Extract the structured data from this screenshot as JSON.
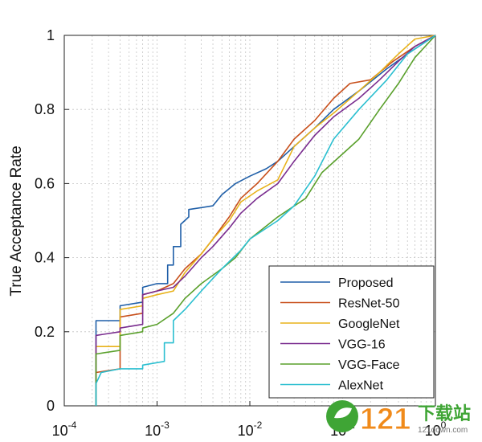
{
  "chart_data": {
    "type": "line",
    "title": "",
    "xlabel": "",
    "ylabel": "True Acceptance Rate",
    "xscale": "log",
    "xlim": [
      0.0001,
      1
    ],
    "ylim": [
      0,
      1
    ],
    "grid": true,
    "legend_position": "bottom-right",
    "x_ticks": [
      {
        "value": 0.0001,
        "label": "10-4",
        "base": "10",
        "exp": "-4"
      },
      {
        "value": 0.001,
        "label": "10-3",
        "base": "10",
        "exp": "-3"
      },
      {
        "value": 0.01,
        "label": "10-2",
        "base": "10",
        "exp": "-2"
      },
      {
        "value": 0.1,
        "label": "10-1",
        "base": "10",
        "exp": "-1"
      },
      {
        "value": 1,
        "label": "100",
        "base": "10",
        "exp": "0"
      }
    ],
    "y_ticks": [
      {
        "value": 0,
        "label": "0"
      },
      {
        "value": 0.2,
        "label": "0.2"
      },
      {
        "value": 0.4,
        "label": "0.4"
      },
      {
        "value": 0.6,
        "label": "0.6"
      },
      {
        "value": 0.8,
        "label": "0.8"
      },
      {
        "value": 1,
        "label": "1"
      }
    ],
    "series": [
      {
        "name": "Proposed",
        "color": "#1f5fa8",
        "points": [
          [
            0.00022,
            0.0
          ],
          [
            0.00022,
            0.23
          ],
          [
            0.0004,
            0.23
          ],
          [
            0.0004,
            0.27
          ],
          [
            0.0007,
            0.28
          ],
          [
            0.0007,
            0.32
          ],
          [
            0.001,
            0.33
          ],
          [
            0.0013,
            0.33
          ],
          [
            0.0013,
            0.38
          ],
          [
            0.0015,
            0.38
          ],
          [
            0.0015,
            0.43
          ],
          [
            0.0018,
            0.43
          ],
          [
            0.0018,
            0.49
          ],
          [
            0.0022,
            0.51
          ],
          [
            0.0022,
            0.53
          ],
          [
            0.004,
            0.54
          ],
          [
            0.005,
            0.57
          ],
          [
            0.007,
            0.6
          ],
          [
            0.01,
            0.62
          ],
          [
            0.015,
            0.64
          ],
          [
            0.02,
            0.66
          ],
          [
            0.03,
            0.7
          ],
          [
            0.05,
            0.75
          ],
          [
            0.08,
            0.8
          ],
          [
            0.15,
            0.85
          ],
          [
            0.3,
            0.91
          ],
          [
            0.5,
            0.95
          ],
          [
            1,
            1
          ]
        ]
      },
      {
        "name": "ResNet-50",
        "color": "#c8501c",
        "points": [
          [
            0.00022,
            0.0
          ],
          [
            0.00022,
            0.09
          ],
          [
            0.0004,
            0.1
          ],
          [
            0.0004,
            0.24
          ],
          [
            0.0007,
            0.25
          ],
          [
            0.0007,
            0.3
          ],
          [
            0.001,
            0.31
          ],
          [
            0.0015,
            0.33
          ],
          [
            0.002,
            0.37
          ],
          [
            0.003,
            0.41
          ],
          [
            0.004,
            0.45
          ],
          [
            0.006,
            0.51
          ],
          [
            0.008,
            0.56
          ],
          [
            0.012,
            0.6
          ],
          [
            0.02,
            0.66
          ],
          [
            0.03,
            0.72
          ],
          [
            0.05,
            0.77
          ],
          [
            0.08,
            0.83
          ],
          [
            0.12,
            0.87
          ],
          [
            0.2,
            0.88
          ],
          [
            0.35,
            0.93
          ],
          [
            0.6,
            0.97
          ],
          [
            1,
            1
          ]
        ]
      },
      {
        "name": "GoogleNet",
        "color": "#e8b21a",
        "points": [
          [
            0.00022,
            0.0
          ],
          [
            0.00022,
            0.16
          ],
          [
            0.0004,
            0.16
          ],
          [
            0.0004,
            0.26
          ],
          [
            0.0007,
            0.27
          ],
          [
            0.0007,
            0.29
          ],
          [
            0.001,
            0.3
          ],
          [
            0.0015,
            0.31
          ],
          [
            0.002,
            0.36
          ],
          [
            0.003,
            0.41
          ],
          [
            0.004,
            0.45
          ],
          [
            0.006,
            0.5
          ],
          [
            0.008,
            0.55
          ],
          [
            0.012,
            0.58
          ],
          [
            0.02,
            0.61
          ],
          [
            0.03,
            0.7
          ],
          [
            0.05,
            0.75
          ],
          [
            0.08,
            0.79
          ],
          [
            0.15,
            0.85
          ],
          [
            0.25,
            0.9
          ],
          [
            0.4,
            0.95
          ],
          [
            0.6,
            0.99
          ],
          [
            1,
            1
          ]
        ]
      },
      {
        "name": "VGG-16",
        "color": "#7a2d8f",
        "points": [
          [
            0.00022,
            0.0
          ],
          [
            0.00022,
            0.19
          ],
          [
            0.0004,
            0.2
          ],
          [
            0.0004,
            0.21
          ],
          [
            0.0007,
            0.22
          ],
          [
            0.0007,
            0.3
          ],
          [
            0.001,
            0.31
          ],
          [
            0.0015,
            0.32
          ],
          [
            0.002,
            0.35
          ],
          [
            0.003,
            0.4
          ],
          [
            0.004,
            0.43
          ],
          [
            0.006,
            0.48
          ],
          [
            0.008,
            0.52
          ],
          [
            0.012,
            0.56
          ],
          [
            0.02,
            0.6
          ],
          [
            0.03,
            0.66
          ],
          [
            0.05,
            0.73
          ],
          [
            0.08,
            0.78
          ],
          [
            0.15,
            0.83
          ],
          [
            0.25,
            0.88
          ],
          [
            0.4,
            0.93
          ],
          [
            0.6,
            0.97
          ],
          [
            1,
            1
          ]
        ]
      },
      {
        "name": "VGG-Face",
        "color": "#5aa02c",
        "points": [
          [
            0.00022,
            0.0
          ],
          [
            0.00022,
            0.14
          ],
          [
            0.0004,
            0.15
          ],
          [
            0.0004,
            0.19
          ],
          [
            0.0007,
            0.2
          ],
          [
            0.0007,
            0.21
          ],
          [
            0.001,
            0.22
          ],
          [
            0.0015,
            0.25
          ],
          [
            0.002,
            0.29
          ],
          [
            0.003,
            0.33
          ],
          [
            0.005,
            0.37
          ],
          [
            0.007,
            0.4
          ],
          [
            0.01,
            0.45
          ],
          [
            0.02,
            0.51
          ],
          [
            0.04,
            0.56
          ],
          [
            0.06,
            0.63
          ],
          [
            0.1,
            0.68
          ],
          [
            0.15,
            0.72
          ],
          [
            0.25,
            0.8
          ],
          [
            0.4,
            0.87
          ],
          [
            0.6,
            0.94
          ],
          [
            1,
            1
          ]
        ]
      },
      {
        "name": "AlexNet",
        "color": "#2bbfd0",
        "points": [
          [
            0.00022,
            0.0
          ],
          [
            0.00022,
            0.06
          ],
          [
            0.00025,
            0.09
          ],
          [
            0.0004,
            0.1
          ],
          [
            0.0007,
            0.1
          ],
          [
            0.0007,
            0.11
          ],
          [
            0.0012,
            0.12
          ],
          [
            0.0012,
            0.17
          ],
          [
            0.0015,
            0.17
          ],
          [
            0.0015,
            0.23
          ],
          [
            0.002,
            0.26
          ],
          [
            0.003,
            0.31
          ],
          [
            0.005,
            0.37
          ],
          [
            0.008,
            0.42
          ],
          [
            0.01,
            0.45
          ],
          [
            0.02,
            0.5
          ],
          [
            0.03,
            0.54
          ],
          [
            0.05,
            0.62
          ],
          [
            0.08,
            0.72
          ],
          [
            0.15,
            0.8
          ],
          [
            0.3,
            0.88
          ],
          [
            0.5,
            0.95
          ],
          [
            1,
            1
          ]
        ]
      }
    ]
  },
  "watermark": {
    "number": "121",
    "cn_text": "下载站",
    "domain": "121down.com"
  }
}
